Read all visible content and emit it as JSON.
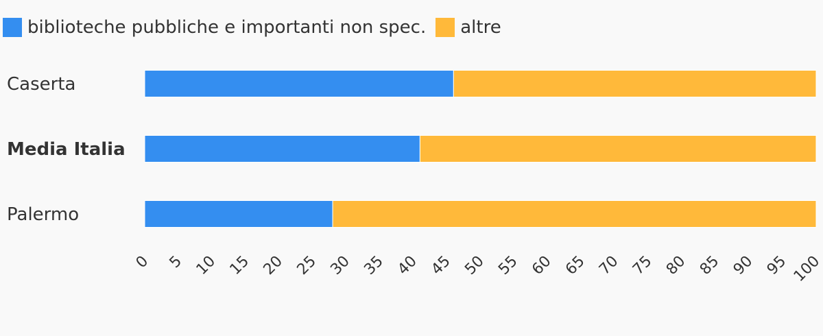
{
  "chart_data": {
    "type": "bar",
    "orientation": "horizontal",
    "stacked": true,
    "categories": [
      "Caserta",
      "Media Italia",
      "Palermo"
    ],
    "bold_categories": [
      "Media Italia"
    ],
    "series": [
      {
        "name": "biblioteche pubbliche e importanti non spec.",
        "color": "#348ef0",
        "values": [
          46,
          41,
          28
        ]
      },
      {
        "name": "altre",
        "color": "#ffb93a",
        "values": [
          54,
          59,
          72
        ]
      }
    ],
    "xlim": [
      0,
      100
    ],
    "xticks": [
      "0",
      "5",
      "10",
      "15",
      "20",
      "25",
      "30",
      "35",
      "40",
      "45",
      "50",
      "55",
      "60",
      "65",
      "70",
      "75",
      "80",
      "85",
      "90",
      "95",
      "100"
    ],
    "xlabel": "",
    "ylabel": "",
    "grid": false,
    "legend_position": "top-left"
  }
}
